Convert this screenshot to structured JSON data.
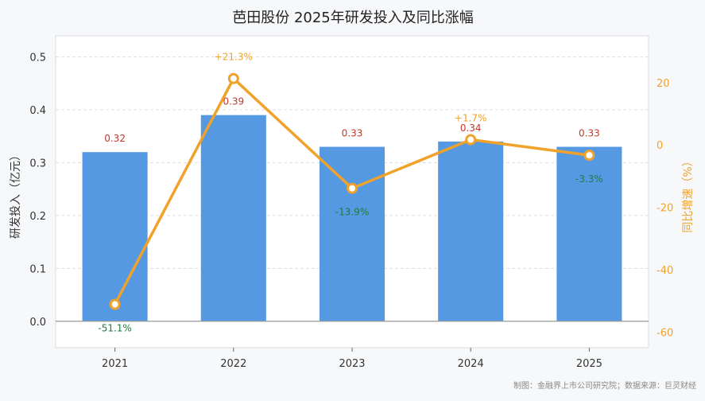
{
  "chart_data": {
    "type": "bar",
    "title": "芭田股份 2025年研发投入及同比涨幅",
    "categories": [
      "2021",
      "2022",
      "2023",
      "2024",
      "2025"
    ],
    "series": [
      {
        "name": "研发投入",
        "type": "bar",
        "axis": "left",
        "values": [
          0.32,
          0.39,
          0.33,
          0.34,
          0.33
        ],
        "labels": [
          "0.32",
          "0.39",
          "0.33",
          "0.34",
          "0.33"
        ]
      },
      {
        "name": "同比增速",
        "type": "line",
        "axis": "right",
        "values": [
          -51.1,
          21.3,
          -13.9,
          1.7,
          -3.3
        ],
        "labels": [
          "-51.1%",
          "+21.3%",
          "-13.9%",
          "+1.7%",
          "-3.3%"
        ]
      }
    ],
    "ylabel": "研发投入（亿元）",
    "ylim": [
      -0.05,
      0.54
    ],
    "yticks": [
      "0.0",
      "0.1",
      "0.2",
      "0.3",
      "0.4",
      "0.5"
    ],
    "y2label": "同比增速（%）",
    "y2lim": [
      -65,
      35
    ],
    "y2ticks": [
      "20",
      "0",
      "-20",
      "-40",
      "-60"
    ],
    "grid": true,
    "colors": {
      "bar": "#5599e2",
      "line": "#f0a22b",
      "pos_label": "#f0a22b",
      "neg_label": "#1e7b3c",
      "bar_label": "#c0392b"
    }
  },
  "footer": {
    "source": "制图：金融界上市公司研究院；数据来源：巨灵财经"
  }
}
